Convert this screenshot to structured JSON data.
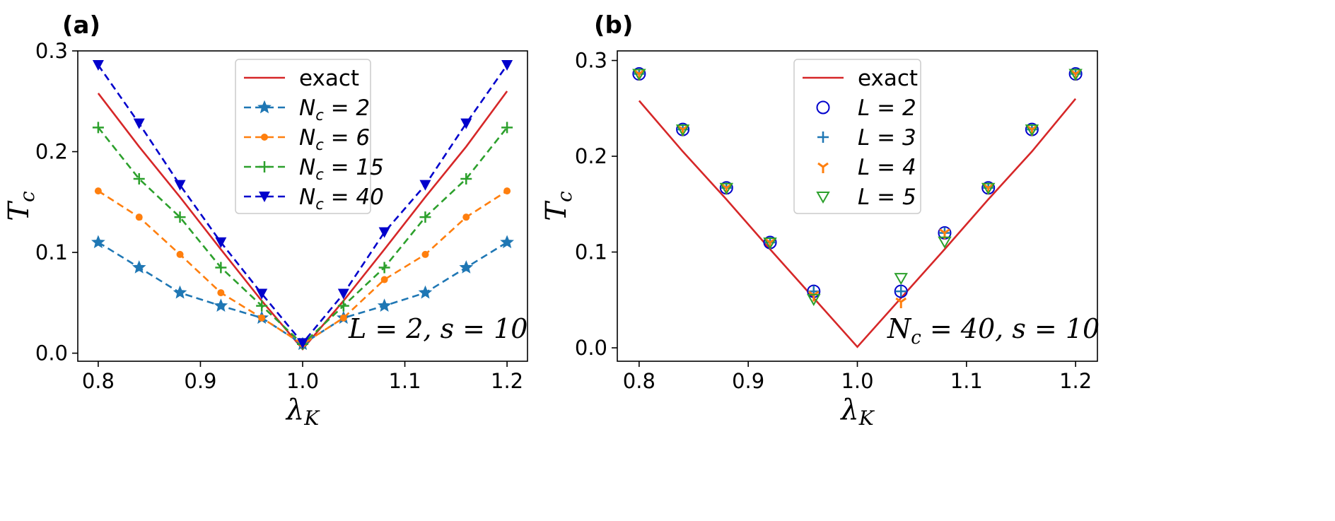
{
  "chart_data": [
    {
      "panel_label": "(a)",
      "type": "line",
      "xlabel": "λ",
      "xlabel_sub": "K",
      "ylabel": "T",
      "ylabel_sub": "c",
      "xlim": [
        0.78,
        1.22
      ],
      "ylim": [
        -0.008,
        0.3
      ],
      "xticks": [
        "0.8",
        "0.9",
        "1.0",
        "1.1",
        "1.2"
      ],
      "yticks": [
        "0.0",
        "0.1",
        "0.2",
        "0.3"
      ],
      "legend_location": "top-center",
      "annotation": {
        "pre": "L",
        "post": " = 2, s = 10"
      },
      "x": [
        0.8,
        0.84,
        0.88,
        0.92,
        0.96,
        1.0,
        1.04,
        1.08,
        1.12,
        1.16,
        1.2
      ],
      "series": [
        {
          "name": "exact",
          "color": "#d62728",
          "style": "solid",
          "marker": "none",
          "x": [
            0.8,
            0.84,
            0.88,
            0.92,
            0.96,
            1.0,
            1.04,
            1.08,
            1.12,
            1.16,
            1.2
          ],
          "values": [
            0.258,
            0.205,
            0.155,
            0.103,
            0.052,
            0.004,
            0.052,
            0.103,
            0.155,
            0.205,
            0.26
          ],
          "legend": {
            "main": "exact",
            "sub": "",
            "tail": ""
          }
        },
        {
          "name": "N_c = 2",
          "color": "#1f77b4",
          "style": "dashed",
          "marker": "star",
          "values": [
            0.11,
            0.085,
            0.06,
            0.047,
            0.035,
            0.009,
            0.035,
            0.047,
            0.06,
            0.085,
            0.11
          ],
          "legend": {
            "main": "N",
            "sub": "c",
            "tail": " = 2"
          }
        },
        {
          "name": "N_c = 6",
          "color": "#ff7f0e",
          "style": "dashed",
          "marker": "dot",
          "values": [
            0.161,
            0.135,
            0.098,
            0.06,
            0.035,
            0.009,
            0.035,
            0.073,
            0.098,
            0.135,
            0.161
          ],
          "legend": {
            "main": "N",
            "sub": "c",
            "tail": " = 6"
          }
        },
        {
          "name": "N_c = 15",
          "color": "#2ca02c",
          "style": "dashed",
          "marker": "plus",
          "values": [
            0.224,
            0.173,
            0.135,
            0.085,
            0.047,
            0.009,
            0.047,
            0.085,
            0.135,
            0.173,
            0.224
          ],
          "legend": {
            "main": "N",
            "sub": "c",
            "tail": " = 15"
          }
        },
        {
          "name": "N_c = 40",
          "color": "#0000cc",
          "style": "dashed",
          "marker": "tri-down",
          "values": [
            0.286,
            0.228,
            0.167,
            0.11,
            0.059,
            0.01,
            0.059,
            0.12,
            0.167,
            0.228,
            0.286
          ],
          "legend": {
            "main": "N",
            "sub": "c",
            "tail": " = 40"
          }
        }
      ]
    },
    {
      "panel_label": "(b)",
      "type": "scatter",
      "xlabel": "λ",
      "xlabel_sub": "K",
      "ylabel": "T",
      "ylabel_sub": "c",
      "xlim": [
        0.78,
        1.22
      ],
      "ylim": [
        -0.014,
        0.31
      ],
      "xticks": [
        "0.8",
        "0.9",
        "1.0",
        "1.1",
        "1.2"
      ],
      "yticks": [
        "0.0",
        "0.1",
        "0.2",
        "0.3"
      ],
      "legend_location": "top-center",
      "annotation": {
        "pre": "N",
        "sub": "c",
        "post": " = 40, s = 10"
      },
      "series": [
        {
          "name": "exact",
          "color": "#d62728",
          "style": "solid",
          "marker": "none",
          "x": [
            0.8,
            0.84,
            0.88,
            0.92,
            0.96,
            1.0,
            1.04,
            1.08,
            1.12,
            1.16,
            1.2
          ],
          "values": [
            0.258,
            0.205,
            0.155,
            0.103,
            0.052,
            0.001,
            0.052,
            0.103,
            0.155,
            0.205,
            0.26
          ],
          "legend": {
            "main": "exact",
            "sub": "",
            "tail": ""
          }
        },
        {
          "name": "L = 2",
          "color": "#0000cc",
          "style": "none",
          "marker": "circle",
          "x": [
            0.8,
            0.84,
            0.88,
            0.92,
            0.96,
            1.04,
            1.08,
            1.12,
            1.16,
            1.2
          ],
          "values": [
            0.286,
            0.228,
            0.167,
            0.11,
            0.059,
            0.059,
            0.12,
            0.167,
            0.228,
            0.286
          ],
          "legend": {
            "main": "L",
            "sub": "",
            "tail": " = 2"
          }
        },
        {
          "name": "L = 3",
          "color": "#1f77b4",
          "style": "none",
          "marker": "plus",
          "x": [
            0.8,
            0.84,
            0.88,
            0.92,
            0.96,
            1.04,
            1.08,
            1.12,
            1.16,
            1.2
          ],
          "values": [
            0.286,
            0.228,
            0.167,
            0.11,
            0.059,
            0.059,
            0.12,
            0.167,
            0.228,
            0.286
          ],
          "legend": {
            "main": "L",
            "sub": "",
            "tail": " = 3"
          }
        },
        {
          "name": "L = 4",
          "color": "#ff7f0e",
          "style": "none",
          "marker": "tri-up",
          "x": [
            0.8,
            0.84,
            0.88,
            0.92,
            0.96,
            1.04,
            1.08,
            1.12,
            1.16,
            1.2
          ],
          "values": [
            0.286,
            0.228,
            0.167,
            0.11,
            0.055,
            0.048,
            0.12,
            0.167,
            0.228,
            0.286
          ],
          "legend": {
            "main": "L",
            "sub": "",
            "tail": " = 4"
          }
        },
        {
          "name": "L = 5",
          "color": "#2ca02c",
          "style": "none",
          "marker": "tri-down-open",
          "x": [
            0.8,
            0.84,
            0.88,
            0.92,
            0.96,
            1.04,
            1.08,
            1.12,
            1.16,
            1.2
          ],
          "values": [
            0.286,
            0.228,
            0.167,
            0.11,
            0.051,
            0.073,
            0.111,
            0.167,
            0.228,
            0.286
          ],
          "legend": {
            "main": "L",
            "sub": "",
            "tail": " = 5"
          }
        }
      ]
    }
  ]
}
